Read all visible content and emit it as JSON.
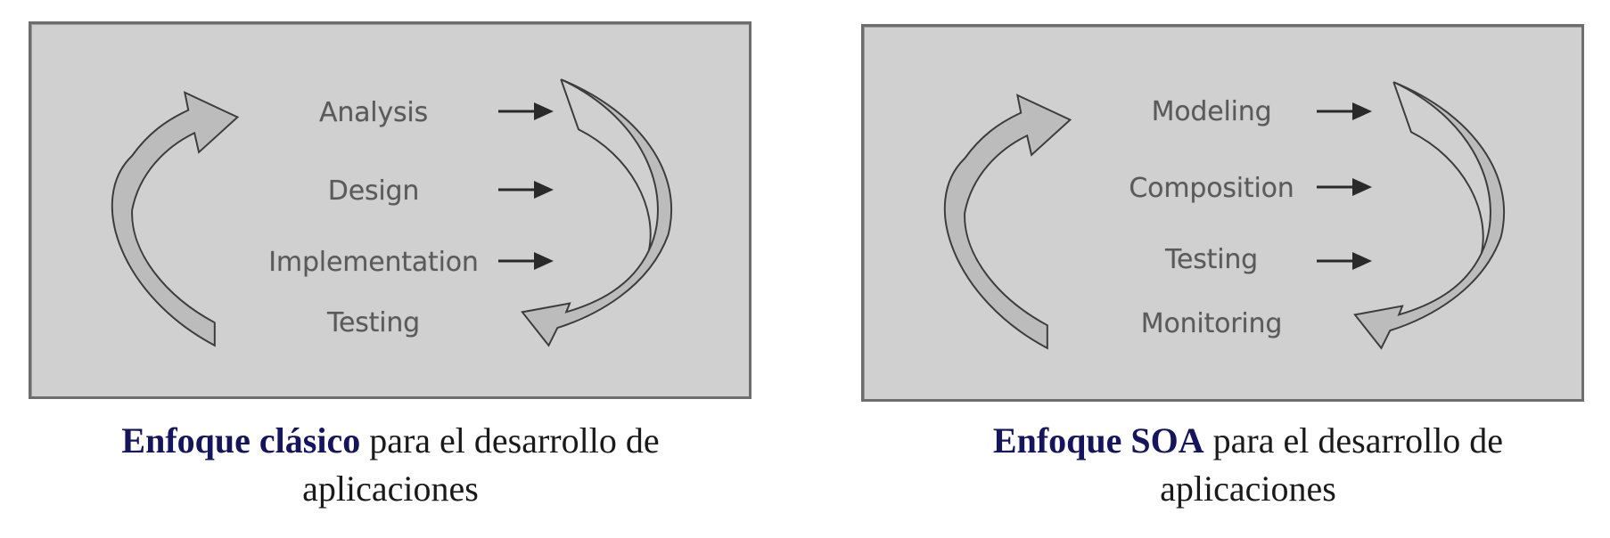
{
  "diagrams": [
    {
      "id": "classic",
      "steps": [
        "Analysis",
        "Design",
        "Implementation",
        "Testing"
      ],
      "caption": {
        "emphasis": "Enfoque clásico",
        "rest": " para el desarrollo de",
        "line2": "aplicaciones"
      }
    },
    {
      "id": "soa",
      "steps": [
        "Modeling",
        "Composition",
        "Testing",
        "Monitoring"
      ],
      "caption": {
        "emphasis": "Enfoque SOA",
        "rest": " para el desarrollo de",
        "line2": "aplicaciones"
      }
    }
  ],
  "colors": {
    "panel_background": "#d1d0d1",
    "panel_border": "#6e6d6e",
    "arrow_fill": "#bdbcbd",
    "arrow_stroke": "#3c3c3c",
    "step_text": "#5a5a5a",
    "caption_emphasis": "#15155e",
    "caption_text": "#1a1a1a"
  },
  "icons": {
    "cycle_left": "curved-arrow-left-icon",
    "cycle_right": "curved-arrow-right-icon",
    "step_arrow": "right-arrow-icon"
  }
}
